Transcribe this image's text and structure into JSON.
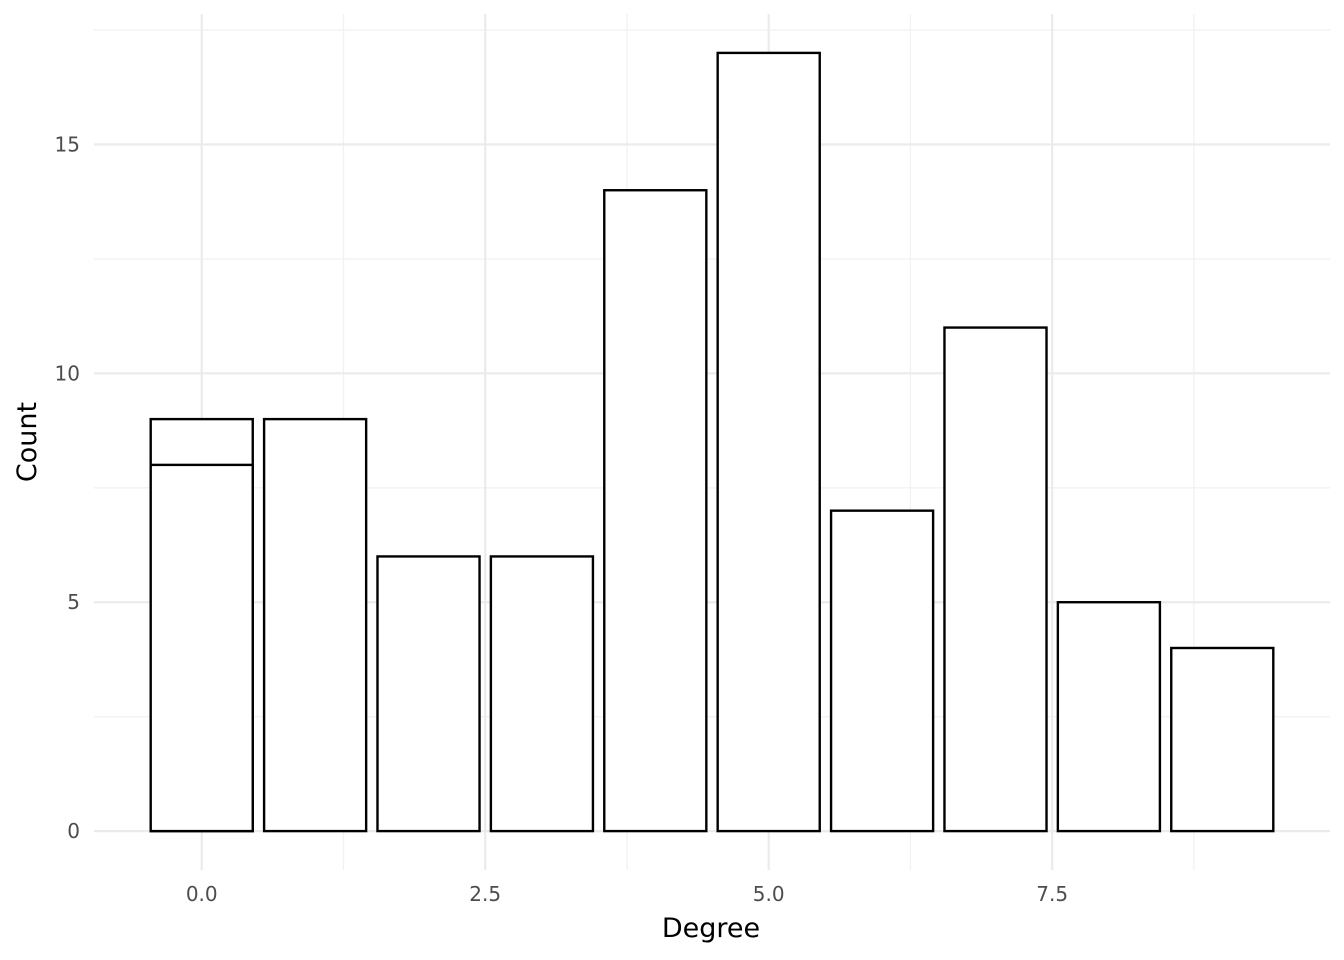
{
  "chart_data": {
    "type": "bar",
    "title": "",
    "xlabel": "Degree",
    "ylabel": "Count",
    "xlim": [
      -0.95,
      9.95
    ],
    "ylim": [
      -0.85,
      17.85
    ],
    "x_ticks": [
      0.0,
      2.5,
      5.0,
      7.5
    ],
    "x_tick_labels": [
      "0.0",
      "2.5",
      "5.0",
      "7.5"
    ],
    "x_minor_ticks": [
      1.25,
      3.75,
      6.25,
      8.75
    ],
    "y_ticks": [
      0,
      5,
      10,
      15
    ],
    "y_tick_labels": [
      "0",
      "5",
      "10",
      "15"
    ],
    "y_minor_ticks": [
      2.5,
      7.5,
      12.5,
      17.5
    ],
    "bar_width": 0.9,
    "bars": [
      {
        "x": 0,
        "value": 9
      },
      {
        "x": 0,
        "value": 8
      },
      {
        "x": 1,
        "value": 9
      },
      {
        "x": 2,
        "value": 6
      },
      {
        "x": 3,
        "value": 6
      },
      {
        "x": 4,
        "value": 14
      },
      {
        "x": 5,
        "value": 17
      },
      {
        "x": 6,
        "value": 7
      },
      {
        "x": 7,
        "value": 11
      },
      {
        "x": 8,
        "value": 5
      },
      {
        "x": 9,
        "value": 4
      }
    ],
    "grid": true,
    "legend": "none",
    "colors": {
      "bar_fill": "#ffffff",
      "bar_stroke": "#000000",
      "grid": "#ebebeb"
    }
  }
}
